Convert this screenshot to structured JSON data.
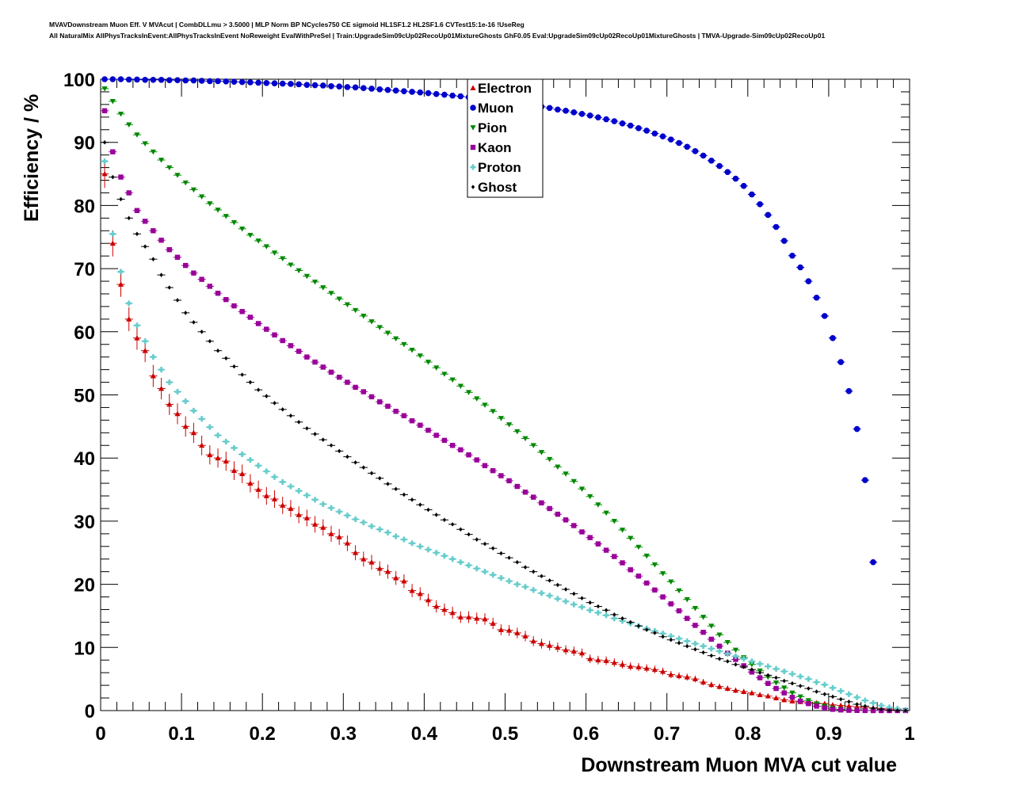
{
  "title_lines": [
    "MVAVDownstream Muon Eff. V MVAcut | CombDLLmu > 3.5000 | MLP Norm BP NCycles750 CE sigmoid HL1SF1.2 HL2SF1.6 CVTest15:1e-16 !UseReg",
    "All NaturalMix AllPhysTracksInEvent:AllPhysTracksInEvent NoReweight EvalWithPreSel | Train:UpgradeSim09cUp02RecoUp01MixtureGhosts GhF0.05 Eval:UpgradeSim09cUp02RecoUp01MixtureGhosts | TMVA-Upgrade-Sim09cUp02RecoUp01"
  ],
  "chart_data": {
    "type": "scatter",
    "xlabel": "Downstream Muon MVA cut value",
    "ylabel": "Efficiency / %",
    "xlim": [
      0,
      1
    ],
    "ylim": [
      0,
      100
    ],
    "x_ticks": [
      "0",
      "0.1",
      "0.2",
      "0.3",
      "0.4",
      "0.5",
      "0.6",
      "0.7",
      "0.8",
      "0.9",
      "1"
    ],
    "y_ticks": [
      "0",
      "10",
      "20",
      "30",
      "40",
      "50",
      "60",
      "70",
      "80",
      "90",
      "100"
    ],
    "legend_position": "top-center",
    "x": [
      0.005,
      0.015,
      0.025,
      0.035,
      0.045,
      0.055,
      0.065,
      0.075,
      0.085,
      0.095,
      0.105,
      0.115,
      0.125,
      0.135,
      0.145,
      0.155,
      0.165,
      0.175,
      0.185,
      0.195,
      0.205,
      0.215,
      0.225,
      0.235,
      0.245,
      0.255,
      0.265,
      0.275,
      0.285,
      0.295,
      0.305,
      0.315,
      0.325,
      0.335,
      0.345,
      0.355,
      0.365,
      0.375,
      0.385,
      0.395,
      0.405,
      0.415,
      0.425,
      0.435,
      0.445,
      0.455,
      0.465,
      0.475,
      0.485,
      0.495,
      0.505,
      0.515,
      0.525,
      0.535,
      0.545,
      0.555,
      0.565,
      0.575,
      0.585,
      0.595,
      0.605,
      0.615,
      0.625,
      0.635,
      0.645,
      0.655,
      0.665,
      0.675,
      0.685,
      0.695,
      0.705,
      0.715,
      0.725,
      0.735,
      0.745,
      0.755,
      0.765,
      0.775,
      0.785,
      0.795,
      0.805,
      0.815,
      0.825,
      0.835,
      0.845,
      0.855,
      0.865,
      0.875,
      0.885,
      0.895,
      0.905,
      0.915,
      0.925,
      0.935,
      0.945,
      0.955,
      0.965,
      0.975,
      0.985,
      0.995
    ],
    "series": [
      {
        "name": "Electron",
        "marker": "triangle-up",
        "color": "#cc0000",
        "values": [
          85.0,
          74.0,
          67.5,
          62.0,
          59.0,
          57.0,
          53.0,
          51.0,
          48.5,
          47.0,
          45.0,
          44.0,
          42.0,
          40.5,
          40.0,
          39.5,
          38.0,
          37.5,
          36.0,
          35.0,
          34.0,
          33.5,
          32.5,
          32.0,
          31.0,
          30.5,
          29.5,
          29.0,
          28.0,
          27.5,
          26.5,
          25.0,
          24.0,
          23.5,
          22.5,
          22.0,
          21.0,
          20.5,
          19.0,
          18.5,
          17.5,
          16.5,
          16.0,
          15.5,
          14.8,
          14.8,
          14.6,
          14.5,
          13.8,
          12.8,
          12.7,
          12.3,
          11.8,
          11.0,
          10.6,
          10.3,
          10.0,
          9.6,
          9.4,
          9.1,
          8.2,
          8.0,
          7.9,
          7.6,
          7.3,
          7.0,
          6.9,
          6.7,
          6.5,
          6.2,
          5.7,
          5.5,
          5.3,
          5.0,
          4.5,
          4.1,
          3.8,
          3.5,
          3.2,
          3.0,
          2.8,
          2.5,
          2.3,
          2.0,
          1.7,
          1.5,
          1.4,
          1.3,
          1.2,
          1.1,
          0.9,
          0.8,
          0.7,
          0.6,
          0.5,
          0.4,
          0.35,
          0.25,
          0.15,
          0.05
        ]
      },
      {
        "name": "Muon",
        "marker": "circle",
        "color": "#0000cc",
        "values": [
          100.0,
          100.0,
          100.0,
          99.95,
          99.95,
          99.9,
          99.9,
          99.9,
          99.85,
          99.85,
          99.8,
          99.8,
          99.75,
          99.7,
          99.7,
          99.65,
          99.6,
          99.55,
          99.5,
          99.45,
          99.4,
          99.35,
          99.3,
          99.25,
          99.2,
          99.1,
          99.05,
          99.0,
          98.9,
          98.85,
          98.75,
          98.7,
          98.6,
          98.5,
          98.4,
          98.3,
          98.2,
          98.1,
          98.0,
          97.9,
          97.8,
          97.65,
          97.55,
          97.4,
          97.3,
          97.15,
          97.0,
          96.9,
          96.7,
          96.55,
          96.4,
          96.2,
          96.05,
          95.85,
          95.65,
          95.45,
          95.2,
          95.0,
          94.75,
          94.5,
          94.25,
          93.95,
          93.65,
          93.35,
          93.0,
          92.65,
          92.25,
          91.85,
          91.4,
          90.95,
          90.45,
          89.9,
          89.3,
          88.6,
          87.9,
          87.1,
          86.25,
          85.3,
          84.25,
          83.1,
          81.75,
          80.2,
          78.5,
          76.6,
          74.4,
          72.05,
          70.2,
          68.0,
          65.4,
          62.5,
          59.0,
          55.2,
          50.6,
          44.6,
          36.5,
          23.5,
          0,
          0,
          0,
          0
        ],
        "x_override_count": 96
      },
      {
        "name": "Pion",
        "marker": "triangle-down",
        "color": "#008800",
        "values": [
          98.5,
          96.5,
          94.5,
          92.8,
          91.2,
          89.8,
          88.5,
          87.2,
          86.0,
          84.8,
          83.6,
          82.5,
          81.4,
          80.3,
          79.3,
          78.3,
          77.3,
          76.3,
          75.3,
          74.4,
          73.5,
          72.5,
          71.6,
          70.6,
          69.7,
          68.8,
          67.9,
          67.0,
          66.1,
          65.2,
          64.3,
          63.4,
          62.5,
          61.6,
          60.7,
          59.8,
          58.9,
          58.0,
          57.1,
          56.2,
          55.2,
          54.3,
          53.3,
          52.4,
          51.4,
          50.4,
          49.4,
          48.4,
          47.4,
          46.3,
          45.3,
          44.2,
          43.1,
          42.0,
          40.9,
          39.8,
          38.6,
          37.5,
          36.3,
          35.1,
          33.9,
          32.6,
          31.3,
          30.0,
          28.6,
          27.3,
          25.9,
          24.5,
          23.1,
          21.7,
          20.4,
          19.0,
          17.6,
          16.2,
          14.8,
          13.4,
          12.0,
          10.8,
          9.6,
          8.4,
          7.3,
          6.3,
          5.3,
          4.4,
          3.6,
          2.8,
          2.2,
          1.6,
          1.1,
          0.7,
          0.4,
          0.2,
          0.1,
          0.05,
          0.02,
          0.01,
          0,
          0,
          0,
          0
        ],
        "x_override_count": 0
      },
      {
        "name": "Kaon",
        "marker": "square",
        "color": "#990099",
        "values": [
          95.0,
          88.5,
          84.5,
          82.0,
          79.2,
          77.5,
          76.0,
          74.5,
          73.0,
          71.8,
          70.5,
          69.3,
          68.3,
          67.2,
          66.1,
          65.1,
          64.1,
          63.2,
          62.3,
          61.3,
          60.4,
          59.5,
          58.6,
          57.8,
          56.9,
          56.0,
          55.2,
          54.4,
          53.6,
          52.8,
          52.0,
          51.2,
          50.5,
          49.7,
          48.9,
          48.2,
          47.4,
          46.7,
          45.9,
          45.2,
          44.4,
          43.6,
          42.8,
          42.0,
          41.3,
          40.5,
          39.7,
          38.8,
          38.0,
          37.2,
          36.4,
          35.5,
          34.6,
          33.8,
          32.9,
          32.0,
          31.1,
          30.2,
          29.3,
          28.3,
          27.4,
          26.4,
          25.4,
          24.4,
          23.4,
          22.3,
          21.3,
          20.2,
          19.1,
          18.0,
          16.9,
          15.8,
          14.6,
          13.5,
          12.4,
          11.3,
          10.2,
          9.1,
          8.1,
          7.1,
          6.1,
          5.2,
          4.3,
          3.5,
          2.8,
          2.1,
          1.5,
          1.1,
          0.7,
          0.4,
          0.2,
          0.1,
          0.05,
          0.02,
          0.01,
          0,
          0,
          0,
          0,
          0
        ],
        "x_override_count": 0
      },
      {
        "name": "Proton",
        "marker": "cross",
        "color": "#66cccc",
        "values": [
          87.0,
          75.5,
          69.5,
          64.5,
          61.0,
          58.5,
          56.0,
          54.0,
          52.0,
          50.5,
          49.0,
          47.5,
          46.2,
          44.9,
          43.6,
          42.6,
          41.6,
          40.6,
          39.7,
          38.8,
          37.9,
          37.0,
          36.2,
          35.5,
          34.8,
          34.1,
          33.4,
          32.7,
          32.1,
          31.5,
          30.9,
          30.3,
          29.8,
          29.2,
          28.7,
          28.2,
          27.6,
          27.1,
          26.5,
          26.0,
          25.5,
          25.0,
          24.5,
          24.0,
          23.5,
          23.0,
          22.5,
          22.0,
          21.5,
          21.0,
          20.5,
          20.0,
          19.6,
          19.1,
          18.6,
          18.2,
          17.7,
          17.3,
          16.8,
          16.4,
          15.9,
          15.5,
          15.1,
          14.6,
          14.2,
          13.8,
          13.4,
          13.0,
          12.6,
          12.2,
          11.8,
          11.4,
          11.0,
          10.6,
          10.2,
          9.8,
          9.4,
          9.0,
          8.6,
          8.2,
          7.8,
          7.4,
          7.0,
          6.6,
          6.2,
          5.8,
          5.4,
          5.0,
          4.5,
          4.1,
          3.6,
          3.1,
          2.6,
          2.1,
          1.6,
          1.2,
          0.8,
          0.5,
          0.3,
          0.1
        ],
        "x_override_count": 0
      },
      {
        "name": "Ghost",
        "marker": "diamond",
        "color": "#000000",
        "values": [
          90.0,
          84.5,
          81.0,
          78.0,
          75.5,
          73.5,
          71.5,
          69.0,
          67.0,
          65.0,
          63.0,
          61.5,
          60.0,
          58.5,
          57.0,
          55.8,
          54.5,
          53.2,
          52.0,
          50.8,
          49.8,
          48.7,
          47.7,
          46.7,
          45.7,
          44.7,
          43.8,
          42.9,
          42.0,
          41.1,
          40.2,
          39.3,
          38.5,
          37.6,
          36.8,
          35.9,
          35.1,
          34.2,
          33.4,
          32.6,
          31.8,
          31.0,
          30.2,
          29.5,
          28.7,
          27.9,
          27.1,
          26.4,
          25.7,
          24.9,
          24.2,
          23.5,
          22.7,
          22.0,
          21.3,
          20.6,
          19.9,
          19.2,
          18.5,
          17.8,
          17.1,
          16.5,
          15.9,
          15.2,
          14.6,
          14.0,
          13.4,
          12.8,
          12.3,
          11.7,
          11.2,
          10.7,
          10.2,
          9.7,
          9.2,
          8.7,
          8.2,
          7.8,
          7.3,
          6.9,
          6.5,
          6.0,
          5.6,
          5.2,
          4.7,
          4.3,
          3.9,
          3.5,
          3.0,
          2.6,
          2.2,
          1.8,
          1.4,
          1.0,
          0.7,
          0.4,
          0.2,
          0.05,
          0.02,
          0.01
        ],
        "x_override_count": 0
      }
    ]
  }
}
